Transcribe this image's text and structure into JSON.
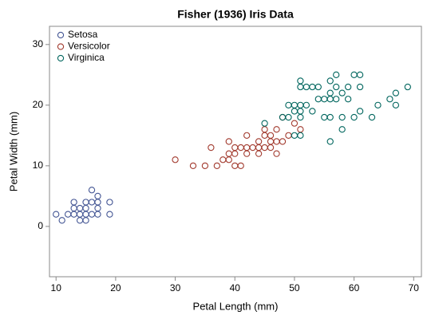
{
  "chart_data": {
    "type": "scatter",
    "title": "Fisher (1936) Iris Data",
    "xlabel": "Petal Length (mm)",
    "ylabel": "Petal Width (mm)",
    "xlim": [
      8.9,
      71.3
    ],
    "ylim": [
      -8.3,
      33
    ],
    "xticks": [
      10,
      20,
      30,
      40,
      50,
      60,
      70
    ],
    "yticks": [
      0,
      10,
      20,
      30
    ],
    "legend": "upper left",
    "series": [
      {
        "name": "Setosa",
        "color": "#445694",
        "x": [
          14,
          13,
          15,
          17,
          14,
          15,
          16,
          14,
          11,
          12,
          15,
          13,
          17,
          15,
          17,
          10,
          17,
          19,
          16,
          19,
          13,
          16
        ],
        "values": [
          2,
          2,
          2,
          4,
          3,
          1,
          2,
          1,
          1,
          2,
          4,
          4,
          3,
          3,
          2,
          2,
          5,
          2,
          4,
          4,
          3,
          6
        ]
      },
      {
        "name": "Versicolor",
        "color": "#a23a2e",
        "x": [
          47,
          45,
          49,
          40,
          46,
          45,
          47,
          33,
          46,
          39,
          35,
          42,
          40,
          36,
          44,
          41,
          39,
          48,
          47,
          43,
          48,
          50,
          38,
          37,
          39,
          51,
          45,
          44,
          41,
          44,
          46,
          40,
          42,
          42,
          30
        ],
        "values": [
          14,
          15,
          15,
          13,
          15,
          13,
          16,
          10,
          13,
          14,
          10,
          15,
          10,
          13,
          14,
          10,
          11,
          18,
          12,
          13,
          14,
          17,
          11,
          10,
          12,
          16,
          16,
          13,
          13,
          12,
          14,
          12,
          13,
          12,
          11
        ]
      },
      {
        "name": "Virginica",
        "color": "#01665e",
        "x": [
          60,
          51,
          59,
          56,
          58,
          66,
          45,
          63,
          58,
          61,
          51,
          53,
          55,
          50,
          51,
          53,
          55,
          67,
          69,
          50,
          57,
          49,
          67,
          49,
          57,
          60,
          48,
          56,
          58,
          61,
          64,
          56,
          51,
          56,
          61,
          56,
          54,
          51,
          59,
          57,
          52,
          50,
          52,
          54,
          51
        ],
        "values": [
          25,
          19,
          21,
          18,
          22,
          21,
          17,
          18,
          18,
          25,
          20,
          19,
          21,
          20,
          24,
          23,
          18,
          22,
          23,
          15,
          23,
          20,
          20,
          18,
          21,
          18,
          18,
          21,
          16,
          19,
          20,
          22,
          15,
          14,
          23,
          24,
          21,
          23,
          23,
          25,
          23,
          19,
          20,
          23,
          18
        ]
      }
    ]
  }
}
